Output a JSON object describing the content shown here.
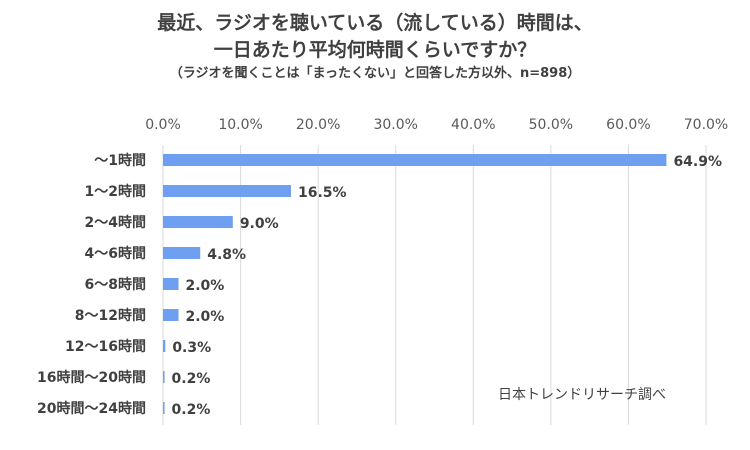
{
  "chart_data": {
    "type": "bar",
    "orientation": "horizontal",
    "title_lines": [
      "最近、ラジオを聴いている（流している）時間は、",
      "一日あたり平均何時間くらいですか？"
    ],
    "subtitle": "（ラジオを聞くことは「まったくない」と回答した方以外、n=898）",
    "categories": [
      "〜1時間",
      "1〜2時間",
      "2〜4時間",
      "4〜6時間",
      "6〜8時間",
      "8〜12時間",
      "12〜16時間",
      "16時間〜20時間",
      "20時間〜24時間"
    ],
    "values": [
      64.9,
      16.5,
      9.0,
      4.8,
      2.0,
      2.0,
      0.3,
      0.2,
      0.2
    ],
    "value_labels": [
      "64.9%",
      "16.5%",
      "9.0%",
      "4.8%",
      "2.0%",
      "2.0%",
      "0.3%",
      "0.2%",
      "0.2%"
    ],
    "x_ticks": [
      "0.0%",
      "10.0%",
      "20.0%",
      "30.0%",
      "40.0%",
      "50.0%",
      "60.0%",
      "70.0%"
    ],
    "xlim": [
      0,
      70
    ],
    "x_axis_position": "top",
    "grid": true,
    "bar_color": "#6E9FF0",
    "grid_color": "#D9D9D9",
    "source": "日本トレンドリサーチ調べ"
  }
}
